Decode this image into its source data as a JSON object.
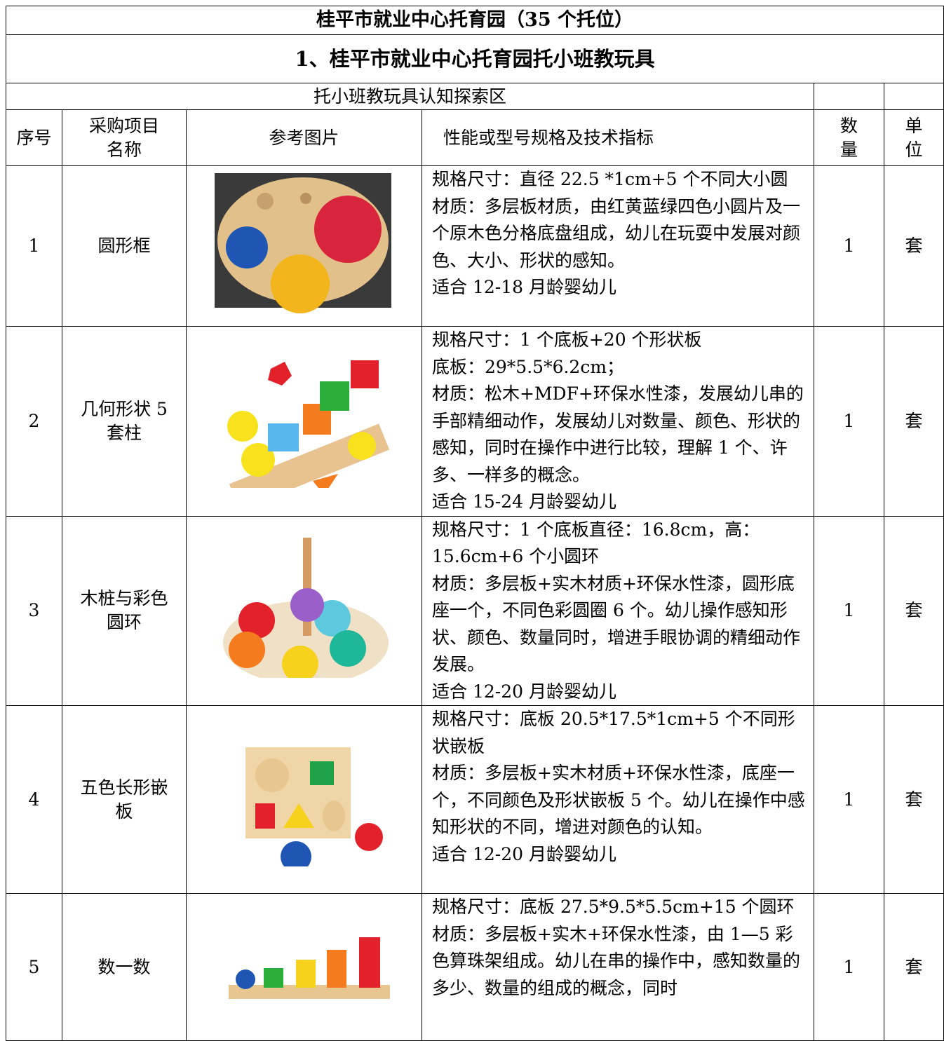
{
  "header": {
    "title": "桂平市就业中心托育园（35 个托位）",
    "subtitle": "1、桂平市就业中心托育园托小班教玩具",
    "section": "托小班教玩具认知探索区"
  },
  "table": {
    "columns": [
      "序号",
      "采购项目名称",
      "参考图片",
      "性能或型号规格及技术指标",
      "数量",
      "单位"
    ],
    "rows": [
      {
        "index": "1",
        "name": "圆形框",
        "spec": [
          "规格尺寸：直径 22.5 *1cm+5 个不同大小圆",
          "材质：多层板材质，由红黄蓝绿四色小圆片及一个原木色分格底盘组成，幼儿在玩耍中发展对颜色、大小、形状的感知。",
          "适合 12-18 月龄婴幼儿"
        ],
        "qty": "1",
        "unit": "套"
      },
      {
        "index": "2",
        "name": "几何形状 5 套柱",
        "spec": [
          "规格尺寸：1 个底板+20 个形状板",
          "底板：29*5.5*6.2cm；",
          "材质：松木+MDF+环保水性漆，发展幼儿串的手部精细动作，发展幼儿对数量、颜色、形状的感知，同时在操作中进行比较，理解 1 个、许多、一样多的概念。",
          "适合 15-24 月龄婴幼儿"
        ],
        "qty": "1",
        "unit": "套"
      },
      {
        "index": "3",
        "name": "木桩与彩色圆环",
        "spec": [
          "规格尺寸：1 个底板直径：16.8cm，高：15.6cm+6 个小圆环",
          "材质：多层板+实木材质+环保水性漆，圆形底座一个，不同色彩圆圈 6 个。幼儿操作感知形状、颜色、数量同时，增进手眼协调的精细动作发展。",
          "适合 12-20 月龄婴幼儿"
        ],
        "qty": "1",
        "unit": "套"
      },
      {
        "index": "4",
        "name": "五色长形嵌板",
        "spec": [
          "规格尺寸：底板 20.5*17.5*1cm+5 个不同形状嵌板",
          "材质：多层板+实木材质+环保水性漆，底座一个，不同颜色及形状嵌板 5 个。幼儿在操作中感知形状的不同，增进对颜色的认知。",
          "适合 12-20 月龄婴幼儿"
        ],
        "qty": "1",
        "unit": "套"
      },
      {
        "index": "5",
        "name": "数一数",
        "spec": [
          "规格尺寸：底板 27.5*9.5*5.5cm+15 个圆环",
          "材质：多层板+实木+环保水性漆，由 1—5 彩色算珠架组成。幼儿在串的操作中，感知数量的多少、数量的组成的概念，同时"
        ],
        "qty": "1",
        "unit": "套"
      }
    ]
  }
}
